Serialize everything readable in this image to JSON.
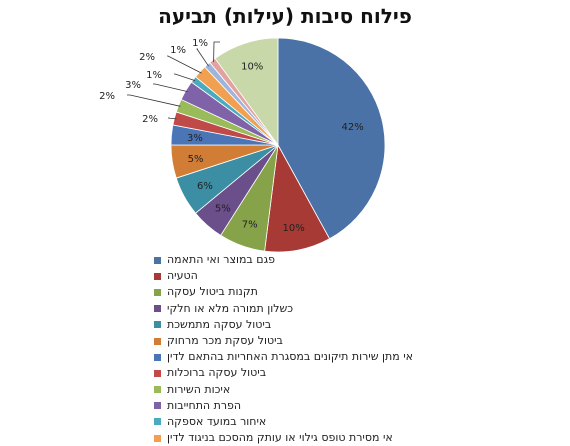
{
  "chart_data": {
    "type": "pie",
    "title": "פילוח סיבות (עילות) תביעה",
    "categories": [
      "פגם במוצר ואי התאמה",
      "הטעיה",
      "תקנות ביטול עסקה",
      "כשלון תמורה מלא או חלקי",
      "ביטול עסקה מתמשכת",
      "ביטול עסקת מכר מרחוק",
      "אי מתן שירות תיקונים במסגרת האחריות בהתאם לדין",
      "ביטול עסקה ברוכלות",
      "איכות השירות",
      "הפרת התחייבות",
      "איחור במועד אספקה",
      "אי מסירת טופס גילוי או עותק מהסכם בניגוד לדין",
      "",
      "",
      ""
    ],
    "values": [
      42,
      10,
      7,
      5,
      6,
      5,
      3,
      2,
      2,
      3,
      1,
      2,
      1,
      1,
      10
    ],
    "data_labels": [
      "42%",
      "10%",
      "7%",
      "5%",
      "6%",
      "5%",
      "3%",
      "2%",
      "2%",
      "3%",
      "1%",
      "2%",
      "1%",
      "1%",
      "10%"
    ],
    "colors": [
      "#4a72a6",
      "#a83a36",
      "#86a34a",
      "#6a4f8a",
      "#3b8ea3",
      "#d27d35",
      "#4a76b8",
      "#c04a48",
      "#9abb5a",
      "#7f62a8",
      "#4aaac0",
      "#f0a050",
      "#9db5dc",
      "#e3a2a0",
      "#c9d8a8"
    ],
    "legend_position": "bottom"
  }
}
